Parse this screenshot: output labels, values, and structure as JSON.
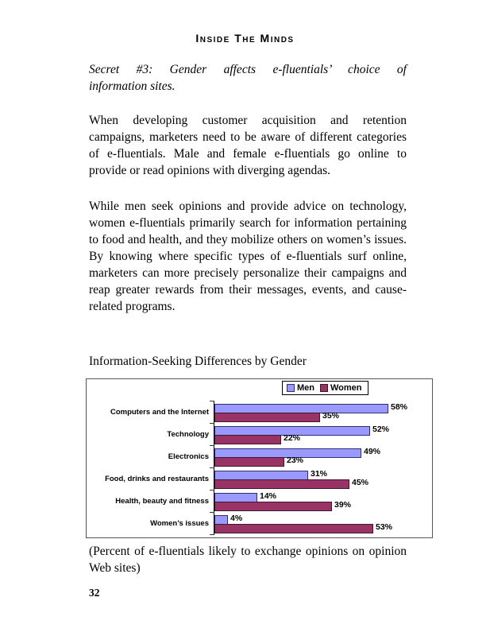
{
  "document": {
    "header": "Inside The Minds",
    "secret_heading_lines": [
      "Secret #3: Gender affects e-fluentials’ choice of",
      "information sites."
    ],
    "paragraphs": [
      "When developing customer acquisition and retention campaigns, marketers need to be aware of different categories of e-fluentials. Male and female e-fluentials go online to provide or read opinions with diverging agendas.",
      "While men seek opinions and provide advice on technology, women e-fluentials primarily search for information pertaining to food and health, and they mobilize others on women’s issues. By knowing where specific types of e-fluentials surf online, marketers can more precisely personalize their campaigns and reap greater rewards from their messages, events, and cause-related programs."
    ],
    "chart_title": "Information-Seeking Differences by Gender",
    "chart_caption": "(Percent of e-fluentials likely to exchange opinions on opinion Web sites)",
    "page_number": "32"
  },
  "chart_data": {
    "type": "bar",
    "orientation": "horizontal",
    "title": "Information-Seeking Differences by Gender",
    "caption": "(Percent of e-fluentials likely to exchange opinions on opinion Web sites)",
    "categories": [
      "Computers and the Internet",
      "Technology",
      "Electronics",
      "Food, drinks and restaurants",
      "Health, beauty and fitness",
      "Women’s issues"
    ],
    "series": [
      {
        "name": "Men",
        "color": "#9999FF",
        "border_color": "#2e2e6e",
        "values": [
          58,
          52,
          49,
          31,
          14,
          4
        ]
      },
      {
        "name": "Women",
        "color": "#993366",
        "border_color": "#3f1530",
        "values": [
          35,
          22,
          23,
          45,
          39,
          53
        ]
      }
    ],
    "value_suffix": "%",
    "xlim": [
      0,
      73
    ],
    "legend_position": "top-center",
    "grid": false
  }
}
